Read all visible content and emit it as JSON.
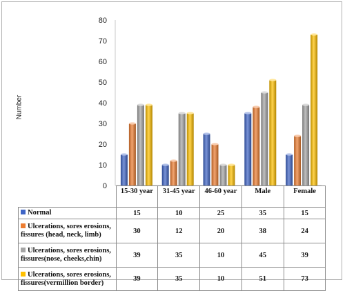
{
  "chart_data": {
    "type": "bar",
    "ylabel": "Number",
    "ylim": [
      0,
      80
    ],
    "yticks": [
      "0",
      "10",
      "20",
      "30",
      "40",
      "50",
      "60",
      "70",
      "80"
    ],
    "categories": [
      "15-30 year",
      "31-45 year",
      "46-60 year",
      "Male",
      "Female"
    ],
    "series": [
      {
        "name": "Normal",
        "color": "#3f65c6",
        "values": [
          15,
          10,
          25,
          35,
          15
        ]
      },
      {
        "name": "Ulcerations, sores erosions, fissures (head, neck, limb)",
        "color": "#ed7d31",
        "values": [
          30,
          12,
          20,
          38,
          24
        ]
      },
      {
        "name": "Ulcerations, sores erosions, fissures(nose, cheeks,chin)",
        "color": "#a5a5a5",
        "values": [
          39,
          35,
          10,
          45,
          39
        ]
      },
      {
        "name": "Ulcerations, sores erosions, fissures(vermillion border)",
        "color": "#ffc000",
        "values": [
          39,
          35,
          10,
          51,
          73
        ]
      }
    ],
    "legend": "data-table-below",
    "grid": false
  }
}
